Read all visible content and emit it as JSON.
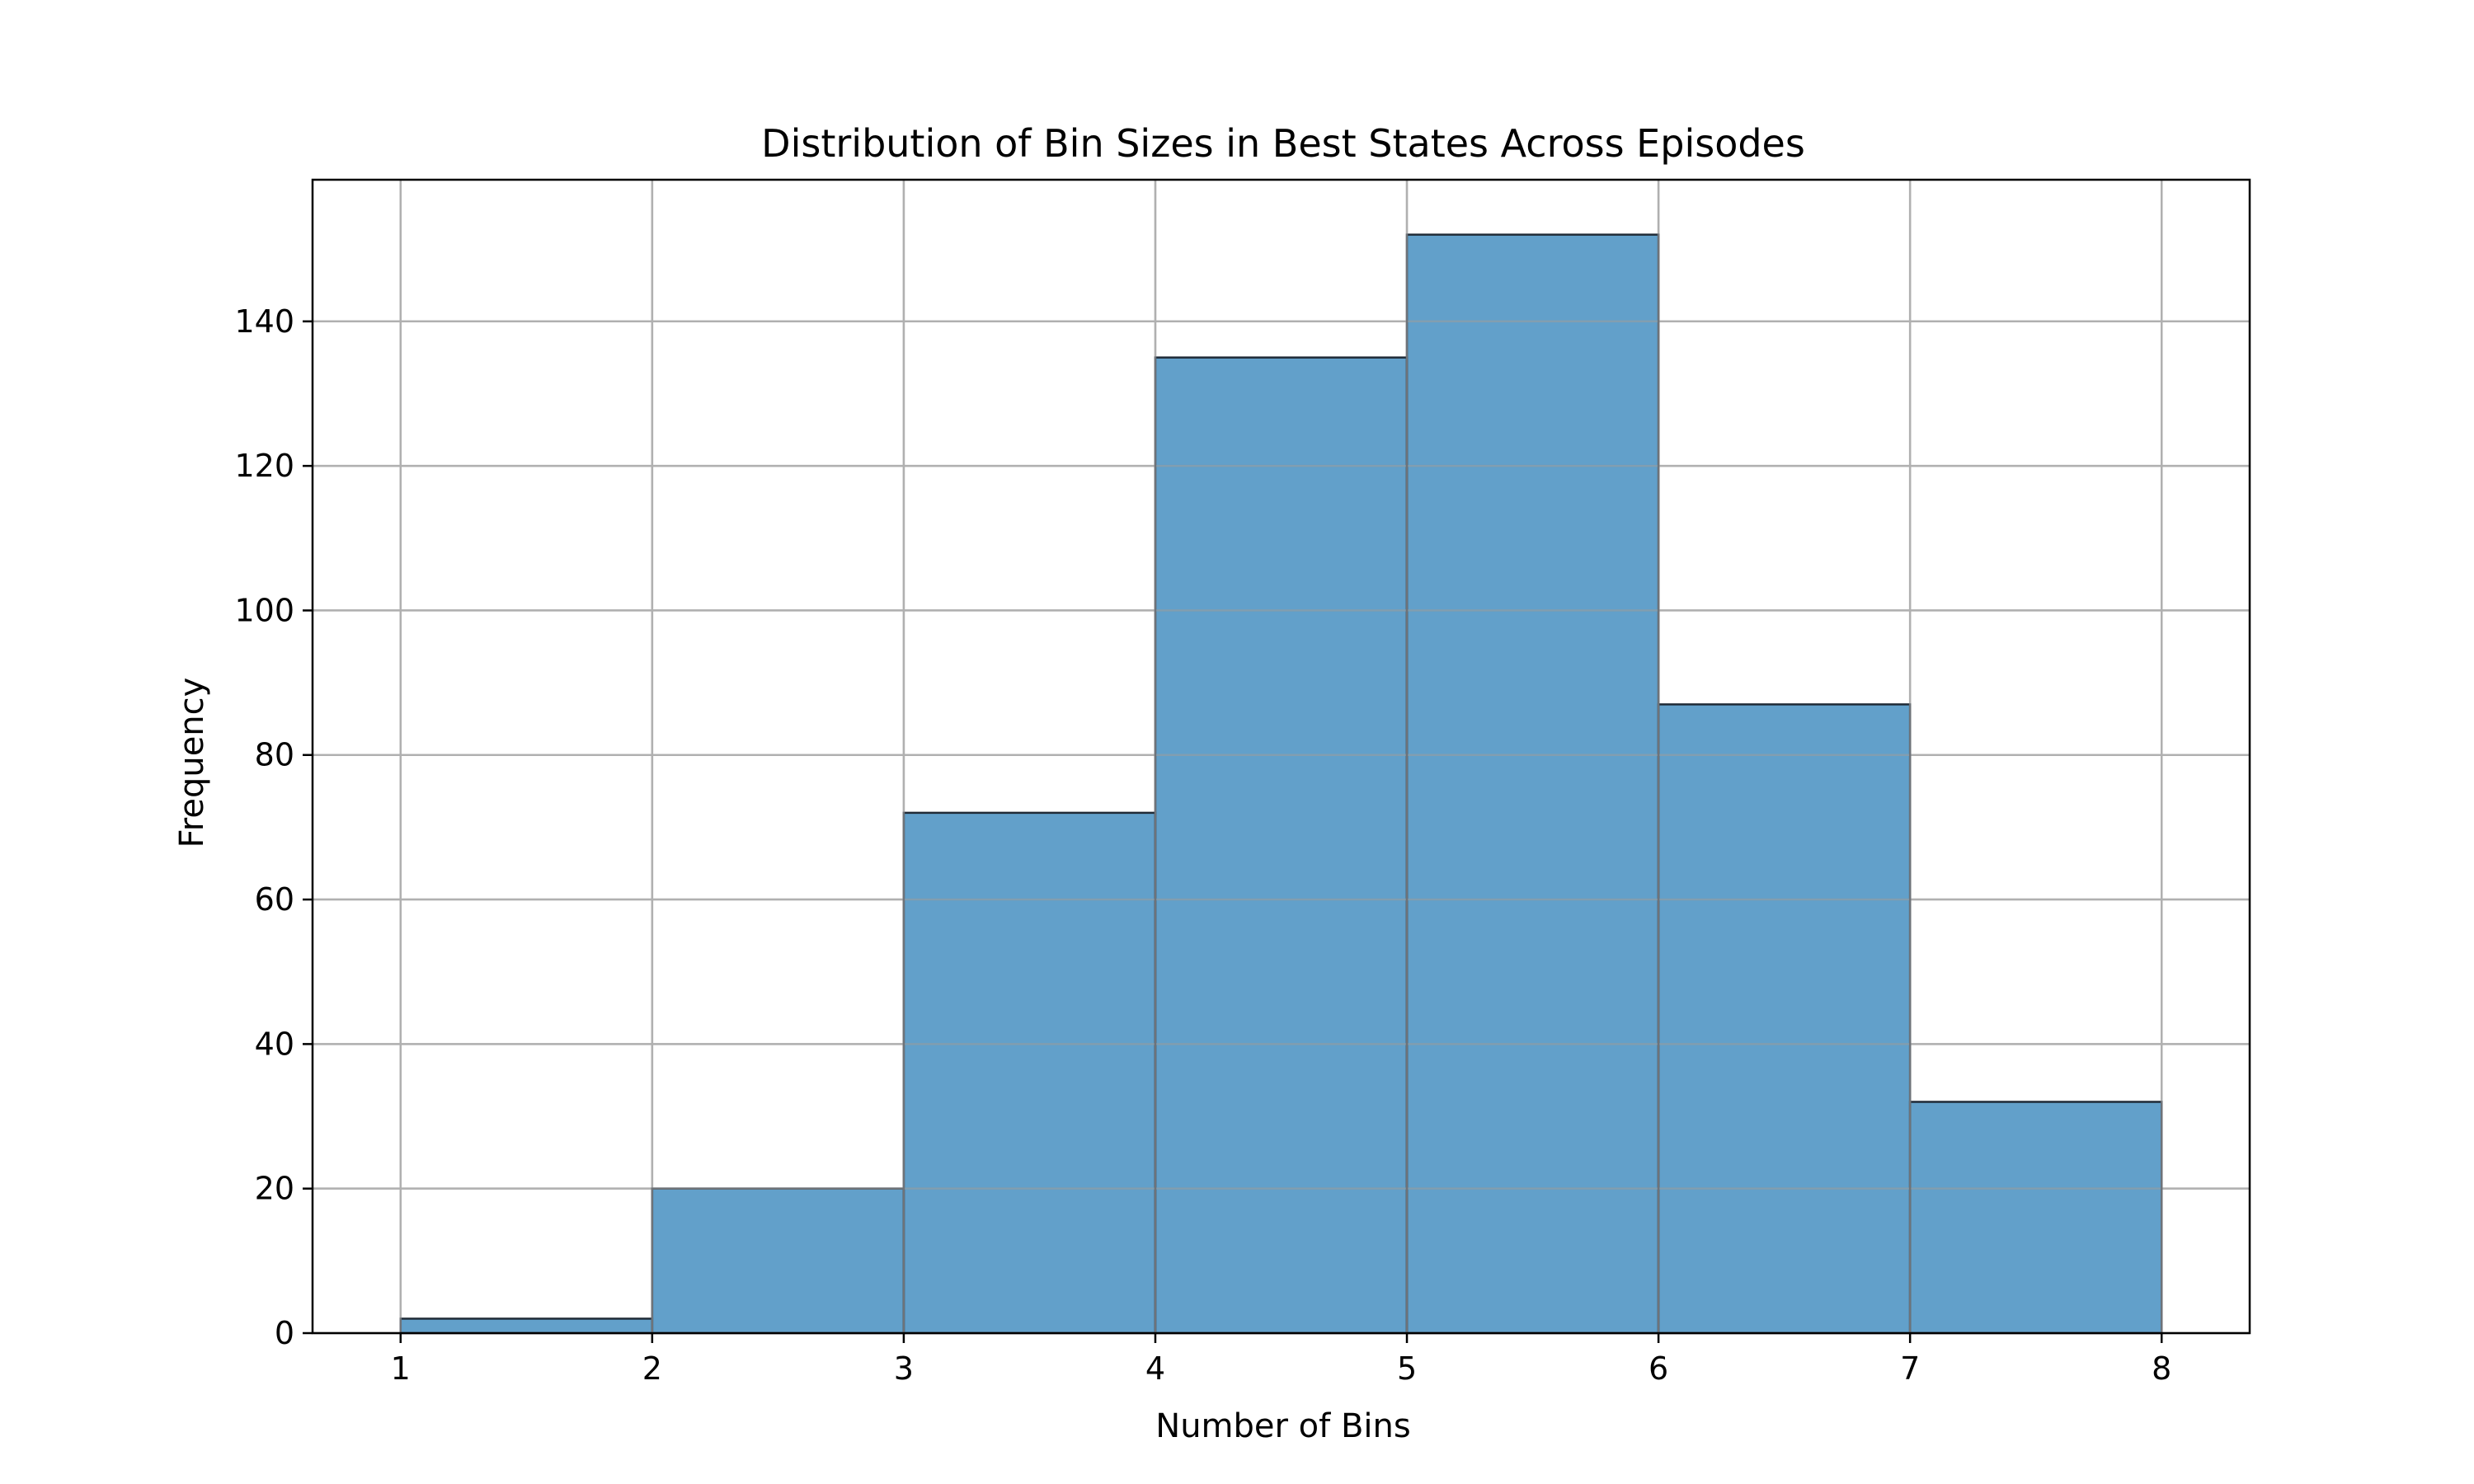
{
  "chart_data": {
    "type": "bar",
    "subtype": "histogram",
    "title": "Distribution of Bin Sizes in Best States Across Episodes",
    "xlabel": "Number of Bins",
    "ylabel": "Frequency",
    "bin_edges": [
      1,
      2,
      3,
      4,
      5,
      6,
      7,
      8
    ],
    "values": [
      2,
      20,
      72,
      135,
      152,
      87,
      32
    ],
    "xlim": [
      0.65,
      8.35
    ],
    "ylim": [
      0,
      159.6
    ],
    "x_ticks": [
      "1",
      "2",
      "3",
      "4",
      "5",
      "6",
      "7",
      "8"
    ],
    "y_ticks": [
      "0",
      "20",
      "40",
      "60",
      "80",
      "100",
      "120",
      "140"
    ],
    "grid": true,
    "legend": "none",
    "colors": {
      "bar_fill": "#1f77b4",
      "bar_opacity": 0.7,
      "bar_edge": "#1f2a36"
    }
  }
}
